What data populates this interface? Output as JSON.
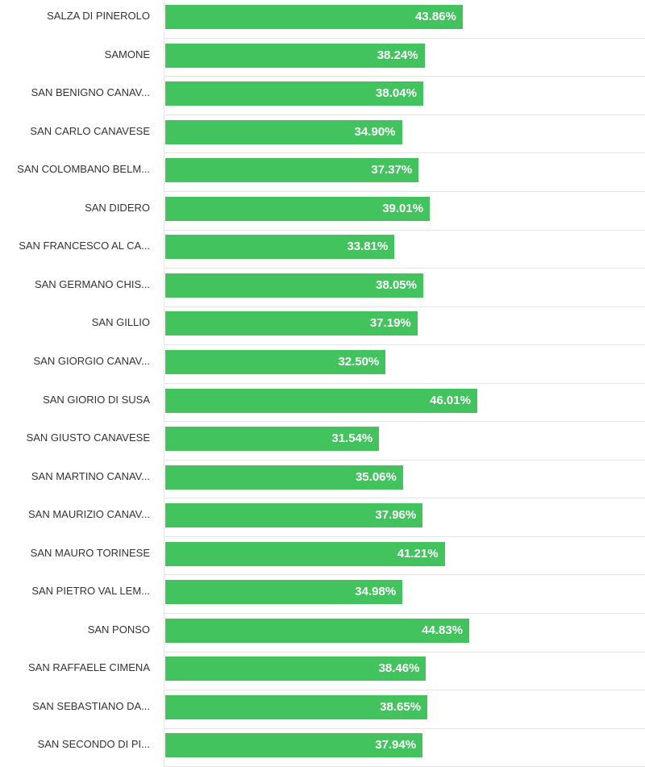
{
  "chart_data": {
    "type": "bar",
    "orientation": "horizontal",
    "title": "",
    "xlabel": "",
    "ylabel": "",
    "xlim": [
      0,
      70.75
    ],
    "grid": false,
    "legend": "none",
    "bar_color": "#42c35e",
    "value_suffix": "%",
    "categories": [
      "SALZA DI PINEROLO",
      "SAMONE",
      "SAN BENIGNO CANAV...",
      "SAN CARLO CANAVESE",
      "SAN COLOMBANO BELM...",
      "SAN DIDERO",
      "SAN FRANCESCO AL CA...",
      "SAN GERMANO CHIS...",
      "SAN GILLIO",
      "SAN GIORGIO CANAV...",
      "SAN GIORIO DI SUSA",
      "SAN GIUSTO CANAVESE",
      "SAN MARTINO CANAV...",
      "SAN MAURIZIO CANAV...",
      "SAN MAURO TORINESE",
      "SAN PIETRO VAL LEM...",
      "SAN PONSO",
      "SAN RAFFAELE CIMENA",
      "SAN SEBASTIANO DA...",
      "SAN SECONDO DI PI..."
    ],
    "values": [
      43.86,
      38.24,
      38.04,
      34.9,
      37.37,
      39.01,
      33.81,
      38.05,
      37.19,
      32.5,
      46.01,
      31.54,
      35.06,
      37.96,
      41.21,
      34.98,
      44.83,
      38.46,
      38.65,
      37.94
    ],
    "data_labels": [
      "43.86%",
      "38.24%",
      "38.04%",
      "34.90%",
      "37.37%",
      "39.01%",
      "33.81%",
      "38.05%",
      "37.19%",
      "32.50%",
      "46.01%",
      "31.54%",
      "35.06%",
      "37.96%",
      "41.21%",
      "34.98%",
      "44.83%",
      "38.46%",
      "38.65%",
      "37.94%"
    ]
  }
}
